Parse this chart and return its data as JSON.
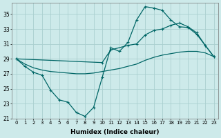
{
  "xlabel": "Humidex (Indice chaleur)",
  "background_color": "#cdeaea",
  "grid_color": "#aacfcf",
  "line_color": "#006666",
  "xlim": [
    -0.5,
    23.5
  ],
  "ylim": [
    21,
    36.5
  ],
  "yticks": [
    21,
    23,
    25,
    27,
    29,
    31,
    33,
    35
  ],
  "xticks": [
    0,
    1,
    2,
    3,
    4,
    5,
    6,
    7,
    8,
    9,
    10,
    11,
    12,
    13,
    14,
    15,
    16,
    17,
    18,
    19,
    20,
    21,
    22,
    23
  ],
  "curve_zigzag_x": [
    0,
    1,
    2,
    3,
    4,
    5,
    6,
    7,
    8,
    9,
    10,
    11,
    12,
    13,
    14,
    15,
    16,
    17,
    18,
    19,
    20,
    21,
    22,
    23
  ],
  "curve_zigzag_y": [
    29.0,
    28.0,
    27.2,
    26.8,
    24.8,
    23.5,
    23.2,
    21.8,
    21.3,
    22.5,
    26.5,
    30.5,
    30.0,
    31.2,
    34.2,
    36.0,
    35.8,
    35.5,
    34.2,
    33.3,
    33.2,
    32.3,
    30.8,
    29.3
  ],
  "curve_upper_x": [
    0,
    10,
    11,
    13,
    14,
    15,
    16,
    17,
    18,
    19,
    20,
    21,
    22,
    23
  ],
  "curve_upper_y": [
    29.0,
    28.5,
    30.2,
    30.8,
    31.0,
    32.2,
    32.8,
    33.0,
    33.5,
    33.8,
    33.3,
    32.5,
    30.8,
    29.3
  ],
  "curve_lower_x": [
    0,
    1,
    2,
    3,
    4,
    5,
    6,
    7,
    8,
    9,
    10,
    11,
    12,
    13,
    14,
    15,
    16,
    17,
    18,
    19,
    20,
    21,
    22,
    23
  ],
  "curve_lower_y": [
    29.0,
    28.3,
    27.8,
    27.5,
    27.3,
    27.2,
    27.1,
    27.0,
    27.0,
    27.1,
    27.3,
    27.5,
    27.7,
    28.0,
    28.3,
    28.8,
    29.2,
    29.5,
    29.7,
    29.9,
    30.0,
    30.0,
    29.8,
    29.3
  ]
}
